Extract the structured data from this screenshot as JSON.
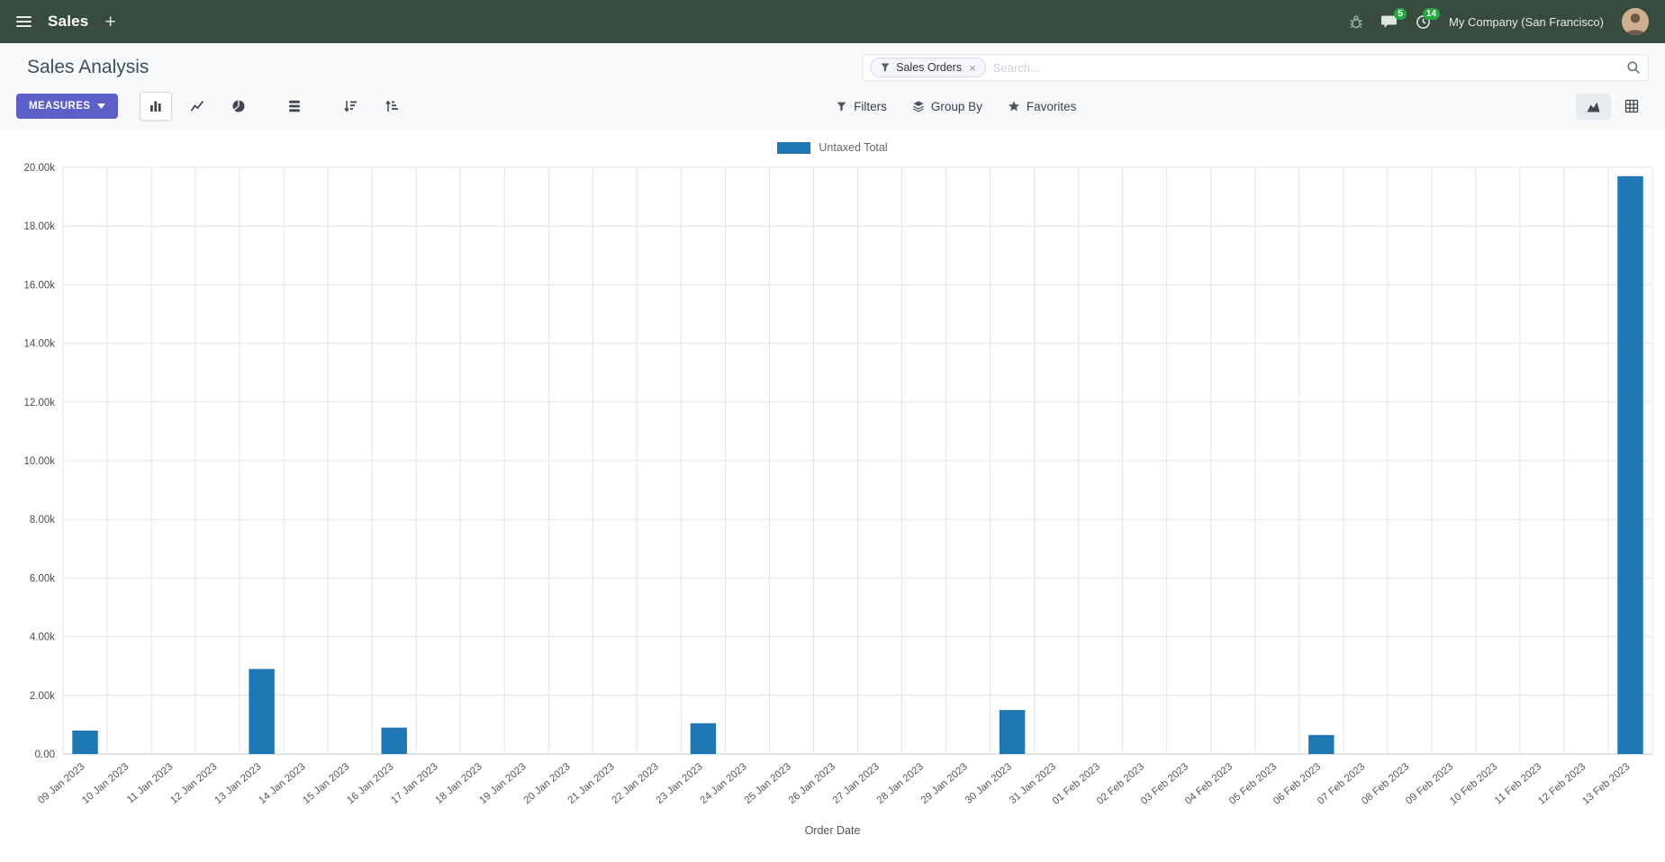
{
  "colors": {
    "navbar_bg": "#374b3f",
    "primary_button": "#5c5fc7",
    "badge_green": "#28a745",
    "bar": "#1f77b4"
  },
  "navbar": {
    "app_name": "Sales",
    "messages_badge": "5",
    "activities_badge": "14",
    "company": "My Company (San Francisco)"
  },
  "control_panel": {
    "title": "Sales Analysis",
    "measures_label": "MEASURES",
    "filters_label": "Filters",
    "group_by_label": "Group By",
    "favorites_label": "Favorites",
    "search": {
      "facet_label": "Sales Orders",
      "facet_remove": "×",
      "placeholder": "Search..."
    }
  },
  "chart_data": {
    "type": "bar",
    "title": "",
    "xlabel": "Order Date",
    "ylabel": "",
    "ylim": [
      0,
      20000
    ],
    "ytick_step": 2000,
    "ytick_labels": [
      "0.00",
      "2.00k",
      "4.00k",
      "6.00k",
      "8.00k",
      "10.00k",
      "12.00k",
      "14.00k",
      "16.00k",
      "18.00k",
      "20.00k"
    ],
    "legend_position": "top",
    "grid": true,
    "categories": [
      "09 Jan 2023",
      "10 Jan 2023",
      "11 Jan 2023",
      "12 Jan 2023",
      "13 Jan 2023",
      "14 Jan 2023",
      "15 Jan 2023",
      "16 Jan 2023",
      "17 Jan 2023",
      "18 Jan 2023",
      "19 Jan 2023",
      "20 Jan 2023",
      "21 Jan 2023",
      "22 Jan 2023",
      "23 Jan 2023",
      "24 Jan 2023",
      "25 Jan 2023",
      "26 Jan 2023",
      "27 Jan 2023",
      "28 Jan 2023",
      "29 Jan 2023",
      "30 Jan 2023",
      "31 Jan 2023",
      "01 Feb 2023",
      "02 Feb 2023",
      "03 Feb 2023",
      "04 Feb 2023",
      "05 Feb 2023",
      "06 Feb 2023",
      "07 Feb 2023",
      "08 Feb 2023",
      "09 Feb 2023",
      "10 Feb 2023",
      "11 Feb 2023",
      "12 Feb 2023",
      "13 Feb 2023"
    ],
    "series": [
      {
        "name": "Untaxed Total",
        "color": "#1f77b4",
        "values": [
          800,
          0,
          0,
          0,
          2900,
          0,
          0,
          900,
          0,
          0,
          0,
          0,
          0,
          0,
          1050,
          0,
          0,
          0,
          0,
          0,
          0,
          1500,
          0,
          0,
          0,
          0,
          0,
          0,
          650,
          0,
          0,
          0,
          0,
          0,
          0,
          19700
        ]
      }
    ]
  }
}
